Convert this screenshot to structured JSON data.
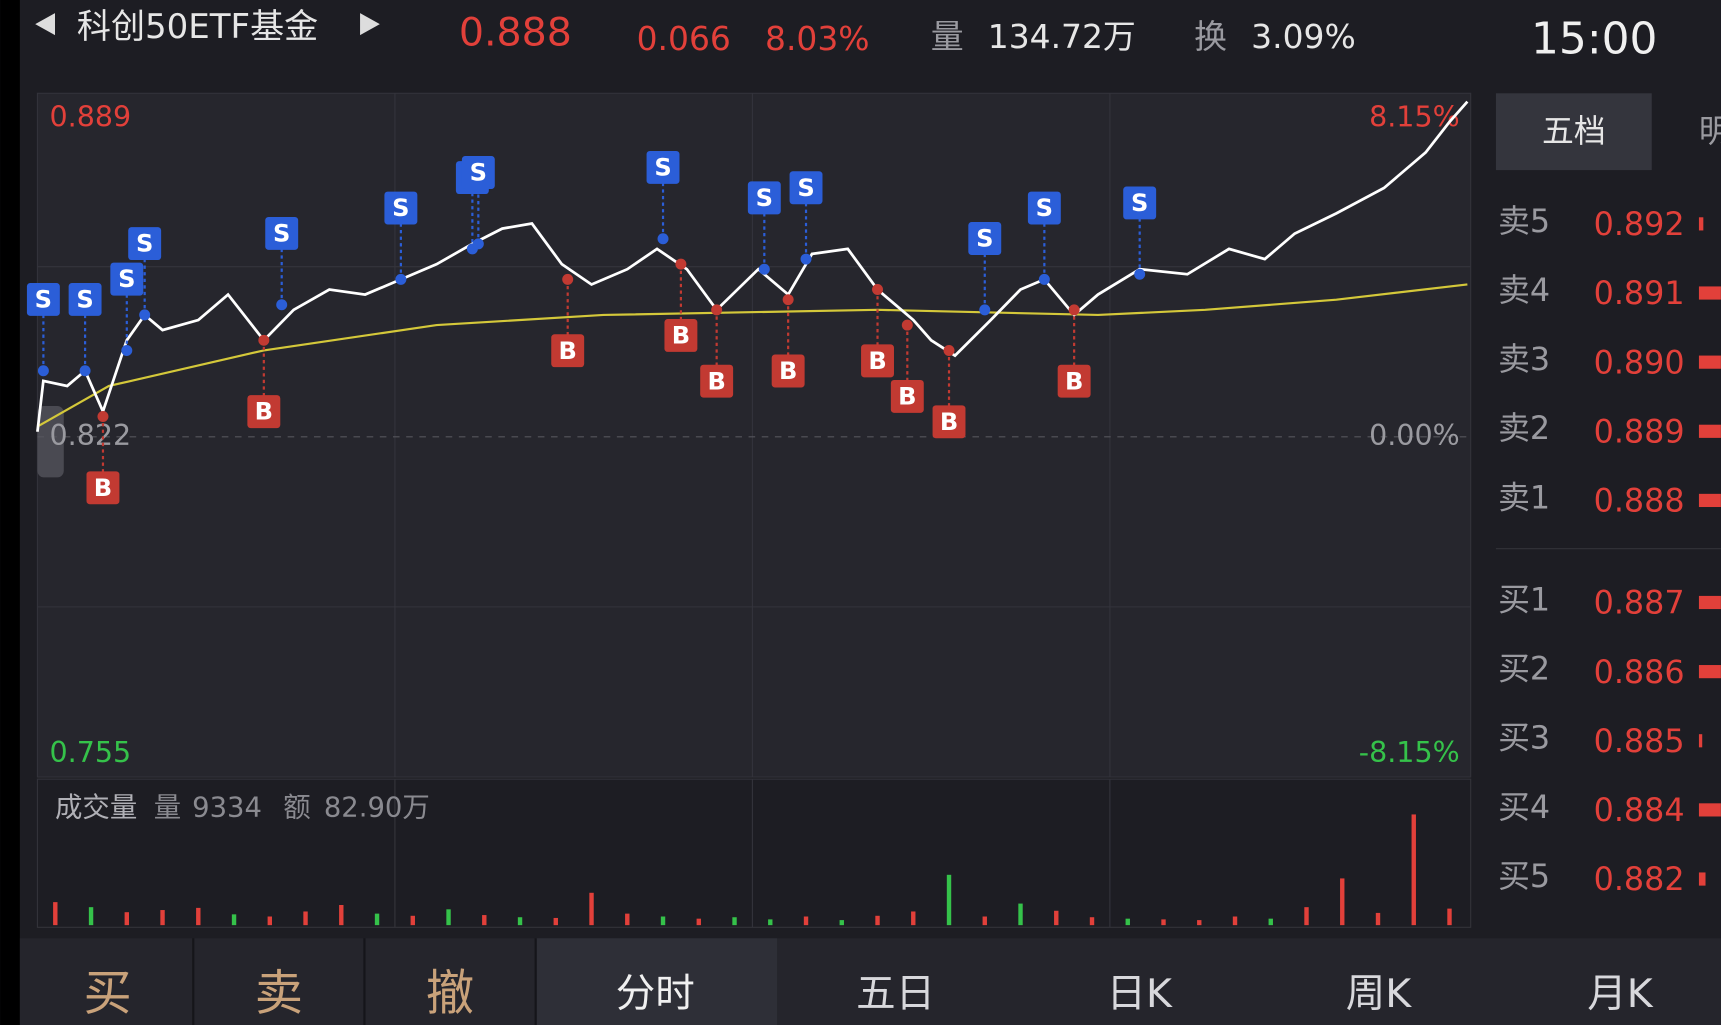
{
  "header": {
    "title": "科创50ETF基金",
    "price": "0.888",
    "change": "0.066",
    "change_pct": "8.03%",
    "volume_label": "量",
    "volume": "134.72万",
    "turnover_label": "换",
    "turnover": "3.09%",
    "time": "15:00"
  },
  "chart_data": {
    "type": "line",
    "xlim": [
      0,
      240
    ],
    "ylim": [
      0.755,
      0.889
    ],
    "yticks": [
      0.755,
      0.822,
      0.889
    ],
    "ytick_colors": [
      "#35c24a",
      "#9a9aa0",
      "#e2403a"
    ],
    "y2lim": [
      -8.15,
      8.15
    ],
    "y2ticks": [
      {
        "value": -8.15,
        "label": "-8.15%"
      },
      {
        "value": 0,
        "label": "0.00%"
      },
      {
        "value": 8.15,
        "label": "8.15%"
      }
    ],
    "xticks": [
      60,
      120,
      180
    ],
    "series": [
      {
        "color": "#ffffff",
        "x": [
          0,
          1,
          5,
          8,
          11,
          15,
          18,
          21,
          27,
          32,
          38,
          43,
          49,
          55,
          61,
          67,
          73,
          78,
          83,
          88,
          93,
          99,
          104,
          109,
          114,
          121,
          126,
          130,
          136,
          141,
          147,
          150,
          154,
          160,
          165,
          169,
          174,
          178,
          185,
          193,
          200,
          206,
          211,
          218,
          226,
          233,
          237,
          240
        ],
        "values": [
          0.823,
          0.833,
          0.832,
          0.835,
          0.827,
          0.841,
          0.846,
          0.843,
          0.845,
          0.85,
          0.841,
          0.847,
          0.851,
          0.85,
          0.853,
          0.856,
          0.86,
          0.863,
          0.864,
          0.856,
          0.852,
          0.855,
          0.859,
          0.855,
          0.847,
          0.855,
          0.85,
          0.858,
          0.859,
          0.851,
          0.845,
          0.841,
          0.838,
          0.845,
          0.851,
          0.853,
          0.846,
          0.85,
          0.855,
          0.854,
          0.859,
          0.857,
          0.862,
          0.866,
          0.871,
          0.878,
          0.884,
          0.888
        ]
      },
      {
        "color": "#d4c83a",
        "x": [
          0,
          12,
          38,
          67,
          95,
          141,
          178,
          196,
          218,
          240
        ],
        "values": [
          0.824,
          0.832,
          0.839,
          0.844,
          0.846,
          0.847,
          0.846,
          0.847,
          0.849,
          0.852
        ]
      }
    ],
    "markers": [
      {
        "label": "S",
        "x": 1,
        "value": 0.835
      },
      {
        "label": "S",
        "x": 8,
        "value": 0.835
      },
      {
        "label": "S",
        "x": 15,
        "value": 0.839
      },
      {
        "label": "S",
        "x": 18,
        "value": 0.846
      },
      {
        "label": "S",
        "x": 41,
        "value": 0.848
      },
      {
        "label": "S",
        "x": 61,
        "value": 0.853
      },
      {
        "label": "S",
        "x": 73,
        "value": 0.859
      },
      {
        "label": "S",
        "x": 74,
        "value": 0.86
      },
      {
        "label": "S",
        "x": 105,
        "value": 0.861
      },
      {
        "label": "S",
        "x": 122,
        "value": 0.855
      },
      {
        "label": "S",
        "x": 129,
        "value": 0.857
      },
      {
        "label": "S",
        "x": 159,
        "value": 0.847
      },
      {
        "label": "S",
        "x": 169,
        "value": 0.853
      },
      {
        "label": "S",
        "x": 185,
        "value": 0.854
      },
      {
        "label": "B",
        "x": 11,
        "value": 0.826
      },
      {
        "label": "B",
        "x": 38,
        "value": 0.841
      },
      {
        "label": "B",
        "x": 89,
        "value": 0.853
      },
      {
        "label": "B",
        "x": 108,
        "value": 0.856
      },
      {
        "label": "B",
        "x": 114,
        "value": 0.847
      },
      {
        "label": "B",
        "x": 126,
        "value": 0.849
      },
      {
        "label": "B",
        "x": 141,
        "value": 0.851
      },
      {
        "label": "B",
        "x": 146,
        "value": 0.844
      },
      {
        "label": "B",
        "x": 153,
        "value": 0.839
      },
      {
        "label": "B",
        "x": 174,
        "value": 0.847
      }
    ],
    "marker_colors": {
      "S": "#2b5ed8",
      "B": "#c23a32"
    },
    "volume": {
      "label": "成交量",
      "volume_label": "量",
      "volume": "9334",
      "amount_label": "额",
      "amount": "82.90万",
      "ylim": [
        0,
        20000
      ],
      "x": [
        3,
        9,
        15,
        21,
        27,
        33,
        39,
        45,
        51,
        57,
        63,
        69,
        75,
        81,
        87,
        93,
        99,
        105,
        111,
        117,
        123,
        129,
        135,
        141,
        147,
        153,
        159,
        165,
        171,
        177,
        183,
        189,
        195,
        201,
        207,
        213,
        219,
        225,
        231,
        237
      ],
      "values": [
        3200,
        2500,
        1800,
        2100,
        2400,
        1500,
        1200,
        1900,
        2800,
        1600,
        1300,
        2200,
        1400,
        1100,
        1000,
        4500,
        1600,
        1200,
        900,
        1100,
        800,
        1200,
        700,
        1300,
        1900,
        7000,
        1200,
        3000,
        2000,
        1100,
        900,
        800,
        700,
        1200,
        900,
        2500,
        6500,
        1700,
        15400,
        2300
      ],
      "colors": [
        "#e2403a",
        "#35c24a",
        "#e2403a",
        "#e2403a",
        "#e2403a",
        "#35c24a",
        "#e2403a",
        "#e2403a",
        "#e2403a",
        "#35c24a",
        "#e2403a",
        "#35c24a",
        "#e2403a",
        "#35c24a",
        "#e2403a",
        "#e2403a",
        "#e2403a",
        "#35c24a",
        "#e2403a",
        "#35c24a",
        "#35c24a",
        "#e2403a",
        "#35c24a",
        "#e2403a",
        "#e2403a",
        "#35c24a",
        "#e2403a",
        "#35c24a",
        "#e2403a",
        "#e2403a",
        "#35c24a",
        "#e2403a",
        "#e2403a",
        "#e2403a",
        "#35c24a",
        "#e2403a",
        "#e2403a",
        "#e2403a",
        "#e2403a",
        "#e2403a"
      ]
    }
  },
  "order_book": {
    "tabs": [
      "五档",
      "明"
    ],
    "asks": [
      {
        "label": "卖5",
        "price": "0.892"
      },
      {
        "label": "卖4",
        "price": "0.891"
      },
      {
        "label": "卖3",
        "price": "0.890"
      },
      {
        "label": "卖2",
        "price": "0.889"
      },
      {
        "label": "卖1",
        "price": "0.888"
      }
    ],
    "bids": [
      {
        "label": "买1",
        "price": "0.887"
      },
      {
        "label": "买2",
        "price": "0.886"
      },
      {
        "label": "买3",
        "price": "0.885"
      },
      {
        "label": "买4",
        "price": "0.884"
      },
      {
        "label": "买5",
        "price": "0.882"
      }
    ]
  },
  "toolbar": {
    "trade": [
      "买",
      "卖",
      "撤"
    ],
    "periods": [
      "分时",
      "五日",
      "日K",
      "周K",
      "月K"
    ]
  }
}
